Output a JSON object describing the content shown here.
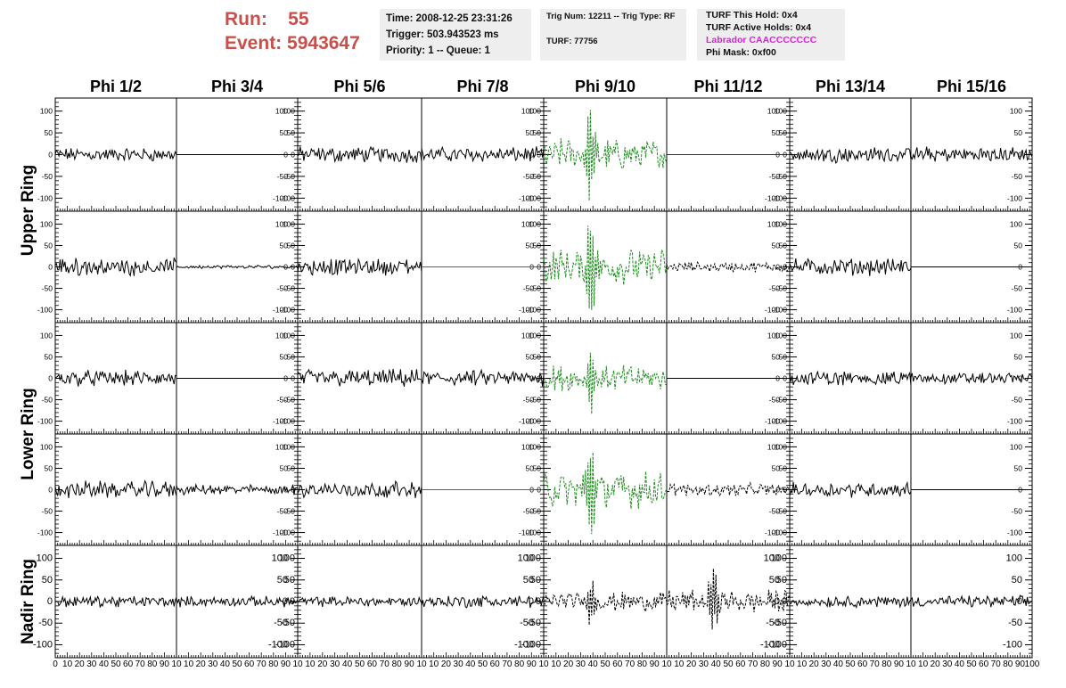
{
  "header": {
    "run_label": "Run:",
    "run_value": "55",
    "event_label": "Event:",
    "event_value": "5943647",
    "time": "Time: 2008-12-25 23:31:26",
    "trigger": "Trigger: 503.943523 ms",
    "priority": "Priority: 1 -- Queue: 1",
    "trig_num": "Trig Num: 12211 -- Trig Type: RF",
    "turf": "TURF: 77756",
    "turf_this_hold": "TURF This Hold: 0x4",
    "turf_active_holds": "TURF Active Holds: 0x4",
    "labrador": "Labrador CAACCCCCCC",
    "phi_mask": "Phi Mask: 0xf00"
  },
  "colors": {
    "run_text": "#c8504a",
    "labrador_text": "#e020e0",
    "info_bg": "#eeeeee",
    "trace_normal": "#000000",
    "trace_triggered": "#1e8c1e",
    "trace_flat_red": "#c83232",
    "trace_flat_blue": "#2020a0"
  },
  "chart_data": {
    "type": "line",
    "columns": [
      "Phi 1/2",
      "Phi 3/4",
      "Phi 5/6",
      "Phi 7/8",
      "Phi 9/10",
      "Phi 11/12",
      "Phi 13/14",
      "Phi 15/16"
    ],
    "rows": [
      "Upper Ring",
      "Lower Ring",
      "Nadir Ring"
    ],
    "rows_per_band": [
      2,
      2,
      1
    ],
    "xlim": [
      0,
      100
    ],
    "ylim": [
      -130,
      130
    ],
    "y_ticks": [
      -100,
      -50,
      0,
      50,
      100
    ],
    "x_ticks": [
      0,
      10,
      20,
      30,
      40,
      50,
      60,
      70,
      80,
      90,
      100
    ],
    "x_tick_labels_left": [
      "0",
      "10",
      "20",
      "30",
      "40",
      "50",
      "60",
      "70",
      "80",
      "90",
      "10"
    ],
    "x_tick_labels_right": [
      "",
      "10",
      "20",
      "30",
      "40",
      "50",
      "60",
      "70",
      "80",
      "90",
      "100"
    ],
    "grid": false,
    "legend": "none",
    "channels": [
      [
        {
          "style": "noise",
          "amp": 12,
          "color": "#000000"
        },
        {
          "style": "flat",
          "amp": 0,
          "color": "#000000"
        },
        {
          "style": "noise",
          "amp": 14,
          "color": "#000000"
        },
        {
          "style": "noise",
          "amp": 13,
          "color": "#000000"
        },
        {
          "style": "pulse",
          "amp": 30,
          "peak": 90,
          "color": "#1e8c1e",
          "dashed": true
        },
        {
          "style": "flat",
          "amp": 0,
          "color": "#2020a0"
        },
        {
          "style": "noise",
          "amp": 13,
          "color": "#000000"
        },
        {
          "style": "noise",
          "amp": 13,
          "color": "#000000"
        }
      ],
      [
        {
          "style": "noise",
          "amp": 15,
          "color": "#000000"
        },
        {
          "style": "noise",
          "amp": 3,
          "color": "#000000"
        },
        {
          "style": "noise",
          "amp": 15,
          "color": "#000000"
        },
        {
          "style": "flat",
          "amp": 0,
          "color": "#c83232"
        },
        {
          "style": "pulse",
          "amp": 35,
          "peak": 110,
          "color": "#1e8c1e",
          "dashed": true
        },
        {
          "style": "noise",
          "amp": 9,
          "color": "#000000",
          "dashed": true
        },
        {
          "style": "noise",
          "amp": 15,
          "color": "#000000"
        },
        {
          "style": "flat",
          "amp": 0,
          "color": "#000000"
        }
      ],
      [
        {
          "style": "noise",
          "amp": 14,
          "color": "#000000"
        },
        {
          "style": "flat",
          "amp": 0,
          "color": "#000000"
        },
        {
          "style": "noise",
          "amp": 16,
          "color": "#000000"
        },
        {
          "style": "noise",
          "amp": 14,
          "color": "#000000"
        },
        {
          "style": "pulse",
          "amp": 25,
          "peak": 55,
          "color": "#1e8c1e",
          "dashed": true
        },
        {
          "style": "flat",
          "amp": 0,
          "color": "#000000"
        },
        {
          "style": "noise",
          "amp": 13,
          "color": "#000000"
        },
        {
          "style": "noise",
          "amp": 10,
          "color": "#000000"
        }
      ],
      [
        {
          "style": "noise",
          "amp": 15,
          "color": "#000000"
        },
        {
          "style": "noise",
          "amp": 9,
          "color": "#000000"
        },
        {
          "style": "noise",
          "amp": 14,
          "color": "#000000"
        },
        {
          "style": "flat",
          "amp": 0,
          "color": "#c83232"
        },
        {
          "style": "pulse",
          "amp": 35,
          "peak": 95,
          "color": "#1e8c1e",
          "dashed": true
        },
        {
          "style": "noise",
          "amp": 11,
          "color": "#000000",
          "dashed": true
        },
        {
          "style": "noise",
          "amp": 13,
          "color": "#000000"
        },
        {
          "style": "flat",
          "amp": 0,
          "color": "#000000"
        }
      ],
      [
        {
          "style": "noise",
          "amp": 10,
          "color": "#000000"
        },
        {
          "style": "noise",
          "amp": 9,
          "color": "#000000"
        },
        {
          "style": "noise",
          "amp": 9,
          "color": "#000000"
        },
        {
          "style": "noise",
          "amp": 11,
          "color": "#000000"
        },
        {
          "style": "pulse",
          "amp": 18,
          "peak": 45,
          "color": "#000000",
          "dashed": true
        },
        {
          "style": "pulse",
          "amp": 22,
          "peak": 60,
          "color": "#000000",
          "dashed": true
        },
        {
          "style": "noise",
          "amp": 10,
          "color": "#000000"
        },
        {
          "style": "noise",
          "amp": 10,
          "color": "#000000"
        }
      ]
    ]
  }
}
